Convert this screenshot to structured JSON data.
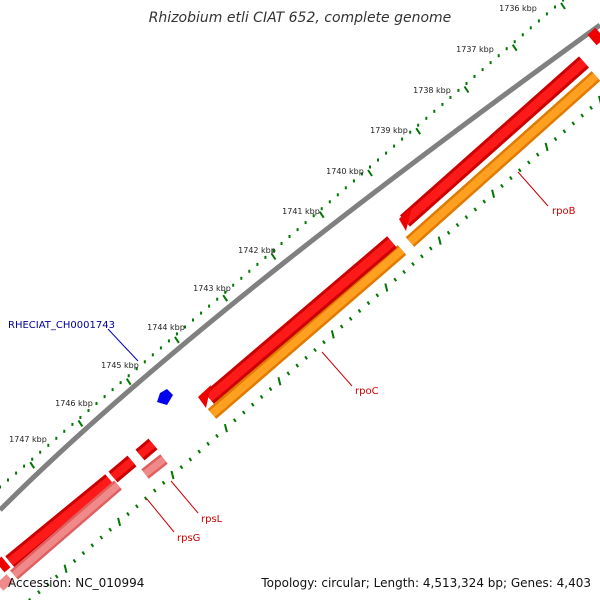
{
  "title": "Rhizobium etli CIAT 652, complete genome",
  "ticks": [
    "1736 kbp",
    "1737 kbp",
    "1738 kbp",
    "1739 kbp",
    "1740 kbp",
    "1741 kbp",
    "1742 kbp",
    "1743 kbp",
    "1744 kbp",
    "1745 kbp",
    "1746 kbp",
    "1747 kbp"
  ],
  "genes": {
    "rpoB": "rpoB",
    "rpoC": "rpoC",
    "rpsL": "rpsL",
    "rpsG": "rpsG",
    "feature": "RHECIAT_CH0001743"
  },
  "footer": {
    "accession": "Accession: NC_010994",
    "topology": "Topology: circular; Length: 4,513,324 bp; Genes: 4,403"
  },
  "colors": {
    "backbone": "#888888",
    "cds_forward": "#ee0000",
    "rna_orange": "#ff9900",
    "pink": "#f08080",
    "tick_green": "#007700",
    "feature_blue": "#0000ee"
  }
}
